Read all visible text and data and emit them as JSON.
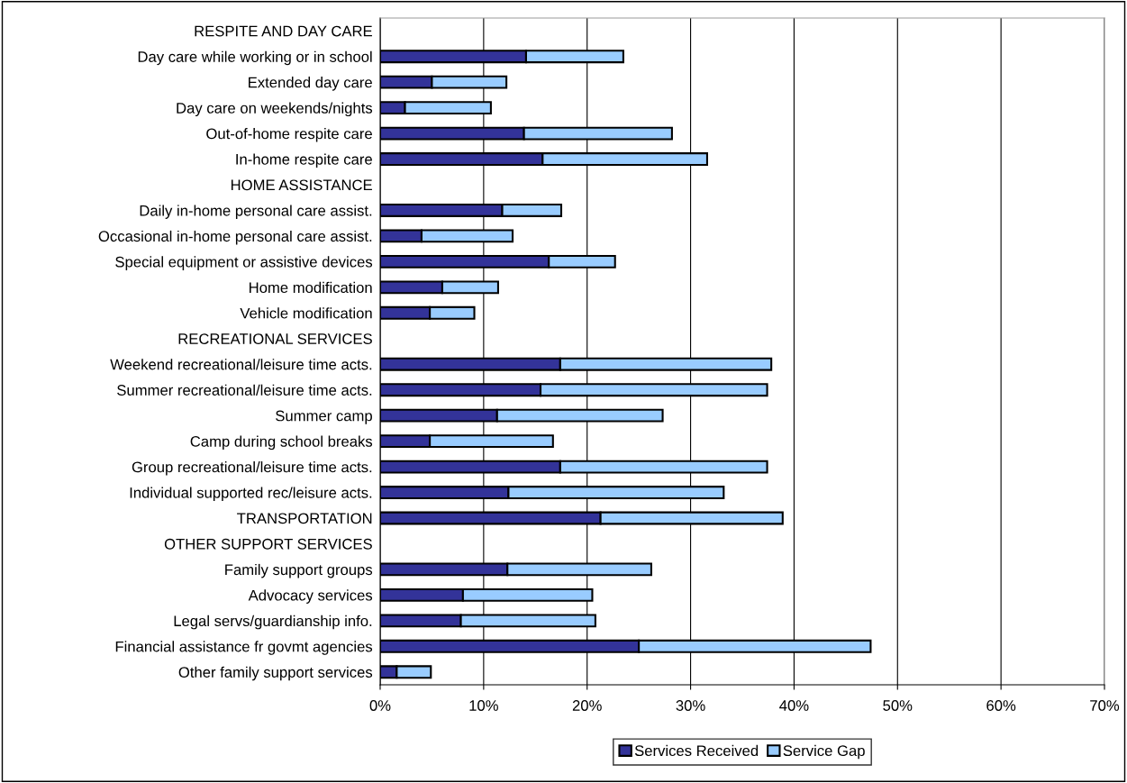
{
  "chart_data": {
    "type": "bar",
    "orientation": "horizontal",
    "stacked": true,
    "categories": [
      "RESPITE AND DAY CARE",
      "Day care while working or in school",
      "Extended day care",
      "Day care on weekends/nights",
      "Out-of-home respite care",
      "In-home respite care",
      "HOME ASSISTANCE",
      "Daily in-home personal care assist.",
      "Occasional in-home personal care assist.",
      "Special equipment or assistive devices",
      "Home modification",
      "Vehicle modification",
      "RECREATIONAL SERVICES",
      "Weekend recreational/leisure time acts.",
      "Summer recreational/leisure time acts.",
      "Summer camp",
      "Camp during school breaks",
      "Group recreational/leisure time acts.",
      "Individual supported rec/leisure acts.",
      "TRANSPORTATION",
      "OTHER SUPPORT SERVICES",
      "Family support groups",
      "Advocacy services",
      "Legal servs/guardianship info.",
      "Financial assistance fr govmt agencies",
      "Other family support services"
    ],
    "series": [
      {
        "name": "Services Received",
        "color": "#333399",
        "values": [
          null,
          14.1,
          5.0,
          2.4,
          13.9,
          15.7,
          null,
          11.8,
          4.0,
          16.3,
          6.0,
          4.8,
          null,
          17.4,
          15.5,
          11.3,
          4.8,
          17.4,
          12.4,
          21.3,
          null,
          12.3,
          8.0,
          7.8,
          25.0,
          1.6
        ]
      },
      {
        "name": "Service Gap",
        "color": "#99ccff",
        "values": [
          null,
          9.4,
          7.2,
          8.3,
          14.3,
          15.9,
          null,
          5.7,
          8.8,
          6.4,
          5.4,
          4.3,
          null,
          20.4,
          21.9,
          16.0,
          11.9,
          20.0,
          20.8,
          17.6,
          null,
          13.9,
          12.5,
          13.0,
          22.4,
          3.3
        ]
      }
    ],
    "xlim": [
      0,
      70
    ],
    "xticks": [
      {
        "value": 0,
        "label": "0%"
      },
      {
        "value": 10,
        "label": "10%"
      },
      {
        "value": 20,
        "label": "20%"
      },
      {
        "value": 30,
        "label": "30%"
      },
      {
        "value": 40,
        "label": "40%"
      },
      {
        "value": 50,
        "label": "50%"
      },
      {
        "value": 60,
        "label": "60%"
      },
      {
        "value": 70,
        "label": "70%"
      }
    ],
    "grid": "x",
    "legend": "bottom"
  }
}
